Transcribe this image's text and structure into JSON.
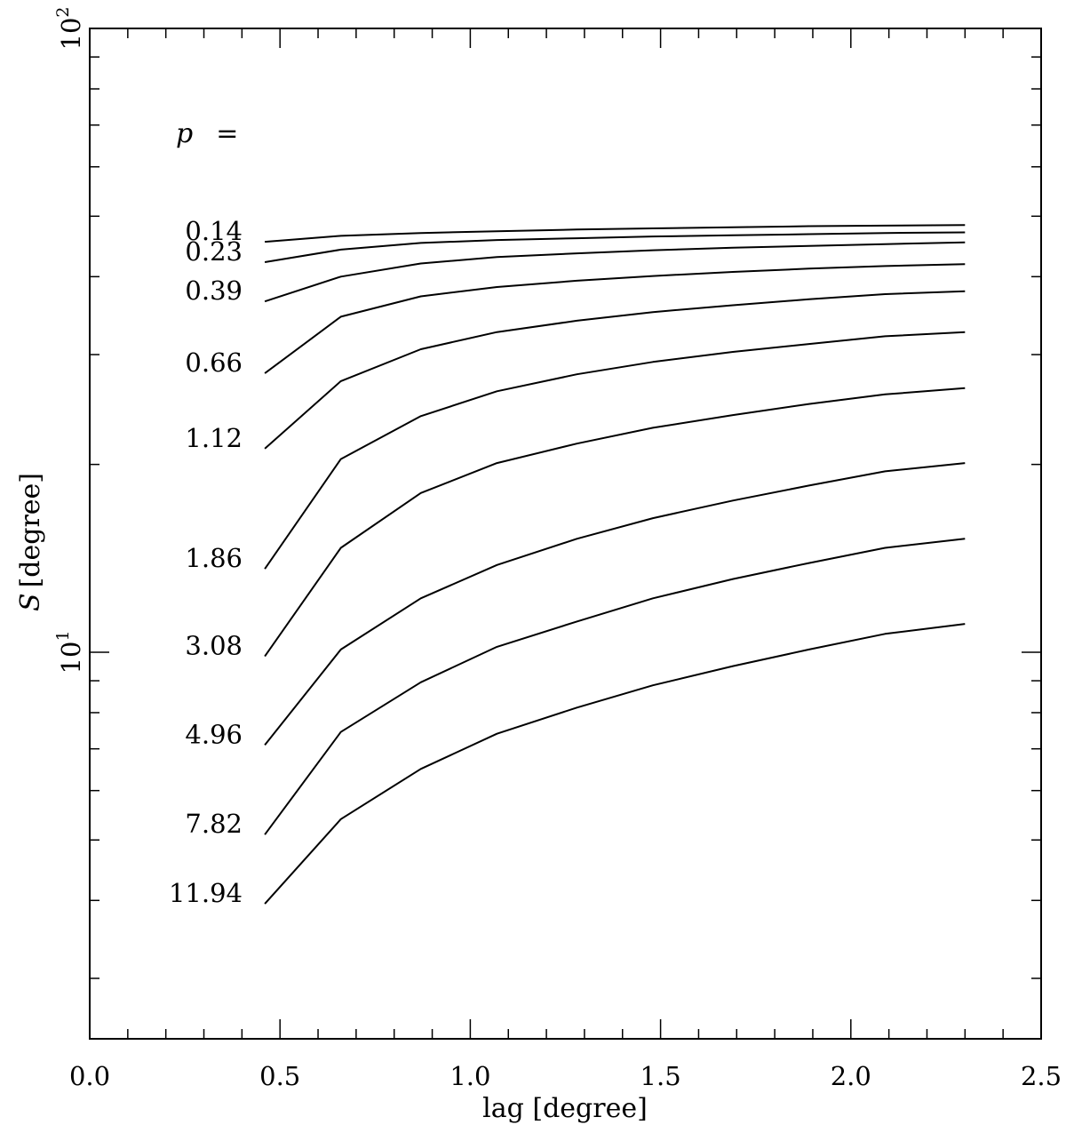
{
  "chart_data": {
    "type": "line",
    "xlabel": "lag [degree]",
    "ylabel_symbol": "S",
    "ylabel_unit": "[degree]",
    "xlim": [
      0.0,
      2.5
    ],
    "ylim": [
      2.4,
      100
    ],
    "yscale": "log",
    "grid": false,
    "x_ticks": [
      "0.0",
      "0.5",
      "1.0",
      "1.5",
      "2.0",
      "2.5"
    ],
    "y_ticks": [
      {
        "value": 10,
        "label": "10",
        "exp": "1"
      },
      {
        "value": 100,
        "label": "10",
        "exp": "2"
      }
    ],
    "series_header": {
      "symbol": "p",
      "eq": "="
    },
    "x": [
      0.46,
      0.66,
      0.87,
      1.07,
      1.28,
      1.48,
      1.69,
      1.89,
      2.09,
      2.3
    ],
    "series": [
      {
        "name": "0.14",
        "values": [
          45.5,
          46.5,
          47.0,
          47.3,
          47.6,
          47.8,
          48.0,
          48.2,
          48.3,
          48.4
        ]
      },
      {
        "name": "0.23",
        "values": [
          42.2,
          44.2,
          45.3,
          45.8,
          46.1,
          46.4,
          46.6,
          46.8,
          47.0,
          47.1
        ]
      },
      {
        "name": "0.39",
        "values": [
          36.5,
          40.0,
          42.0,
          43.0,
          43.6,
          44.1,
          44.5,
          44.8,
          45.1,
          45.4
        ]
      },
      {
        "name": "0.66",
        "values": [
          28.0,
          34.5,
          37.2,
          38.5,
          39.4,
          40.1,
          40.7,
          41.2,
          41.6,
          41.9
        ]
      },
      {
        "name": "1.12",
        "values": [
          21.2,
          27.2,
          30.6,
          32.6,
          34.0,
          35.1,
          36.0,
          36.8,
          37.5,
          37.9
        ]
      },
      {
        "name": "1.86",
        "values": [
          13.6,
          20.4,
          23.9,
          26.2,
          27.9,
          29.2,
          30.3,
          31.2,
          32.1,
          32.6
        ]
      },
      {
        "name": "3.08",
        "values": [
          9.85,
          14.7,
          18.0,
          20.1,
          21.6,
          22.9,
          24.0,
          25.0,
          25.9,
          26.5
        ]
      },
      {
        "name": "4.96",
        "values": [
          7.1,
          10.1,
          12.2,
          13.8,
          15.2,
          16.4,
          17.5,
          18.5,
          19.5,
          20.1
        ]
      },
      {
        "name": "7.82",
        "values": [
          5.1,
          7.45,
          8.95,
          10.2,
          11.2,
          12.2,
          13.1,
          13.9,
          14.7,
          15.2
        ]
      },
      {
        "name": "11.94",
        "values": [
          3.95,
          5.4,
          6.5,
          7.4,
          8.15,
          8.85,
          9.5,
          10.1,
          10.7,
          11.1
        ]
      }
    ]
  }
}
